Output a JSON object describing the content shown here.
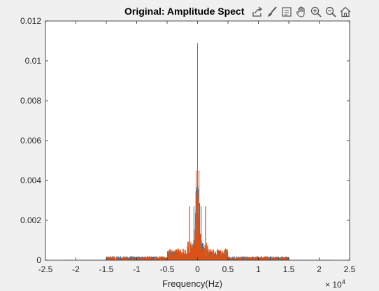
{
  "chart_data": {
    "type": "line",
    "title": "Original: Amplitude Spect",
    "xlabel": "Frequency(Hz)",
    "ylabel": "",
    "x_exponent_base": "× 10",
    "x_exponent_power": "4",
    "xlim": [
      -25000,
      25000
    ],
    "ylim": [
      0,
      0.012
    ],
    "x_ticks": [
      -25000,
      -20000,
      -15000,
      -10000,
      -5000,
      0,
      5000,
      10000,
      15000,
      20000,
      25000
    ],
    "x_tick_labels": [
      "-2.5",
      "-2",
      "-1.5",
      "-1",
      "-0.5",
      "0",
      "0.5",
      "1",
      "1.5",
      "2",
      "2.5"
    ],
    "y_ticks": [
      0,
      0.002,
      0.004,
      0.006,
      0.008,
      0.01,
      0.012
    ],
    "y_tick_labels": [
      "0",
      "0.002",
      "0.004",
      "0.006",
      "0.008",
      "0.01",
      "0.012"
    ],
    "grid": false,
    "series": [
      {
        "color": "#0072BD",
        "bands": [
          {
            "from": -22000,
            "to": -15000,
            "level": 2e-05
          },
          {
            "from": -15000,
            "to": -5000,
            "level": 0.0002
          },
          {
            "from": -5000,
            "to": -1500,
            "level": 0.0005
          },
          {
            "from": -1500,
            "to": 1500,
            "level": 0.0016
          },
          {
            "from": 1500,
            "to": 5000,
            "level": 0.0005
          },
          {
            "from": 5000,
            "to": 15000,
            "level": 0.0002
          },
          {
            "from": 15000,
            "to": 22000,
            "level": 2e-05
          }
        ],
        "peaks": [
          {
            "x": -600,
            "y": 0.0027
          },
          {
            "x": -250,
            "y": 0.003
          },
          {
            "x": 0,
            "y": 0.0108
          },
          {
            "x": 250,
            "y": 0.0045
          },
          {
            "x": 600,
            "y": 0.0027
          }
        ]
      },
      {
        "color": "#D95319",
        "bands": [
          {
            "from": -22000,
            "to": -15000,
            "level": 2e-05
          },
          {
            "from": -15000,
            "to": -5000,
            "level": 0.0002
          },
          {
            "from": -5000,
            "to": -1500,
            "level": 0.0006
          },
          {
            "from": -1500,
            "to": 1500,
            "level": 0.0015
          },
          {
            "from": 1500,
            "to": 5000,
            "level": 0.0006
          },
          {
            "from": 5000,
            "to": 15000,
            "level": 0.0002
          },
          {
            "from": 15000,
            "to": 22000,
            "level": 2e-05
          }
        ],
        "peaks": [
          {
            "x": -1300,
            "y": 0.0027
          },
          {
            "x": -250,
            "y": 0.0045
          },
          {
            "x": 0,
            "y": 0.0109
          },
          {
            "x": 250,
            "y": 0.0045
          },
          {
            "x": 1300,
            "y": 0.0027
          }
        ]
      }
    ]
  },
  "toolbar": {
    "icons": [
      "export-icon",
      "brush-icon",
      "datatip-icon",
      "pan-icon",
      "zoom-in-icon",
      "zoom-out-icon",
      "home-icon"
    ]
  }
}
